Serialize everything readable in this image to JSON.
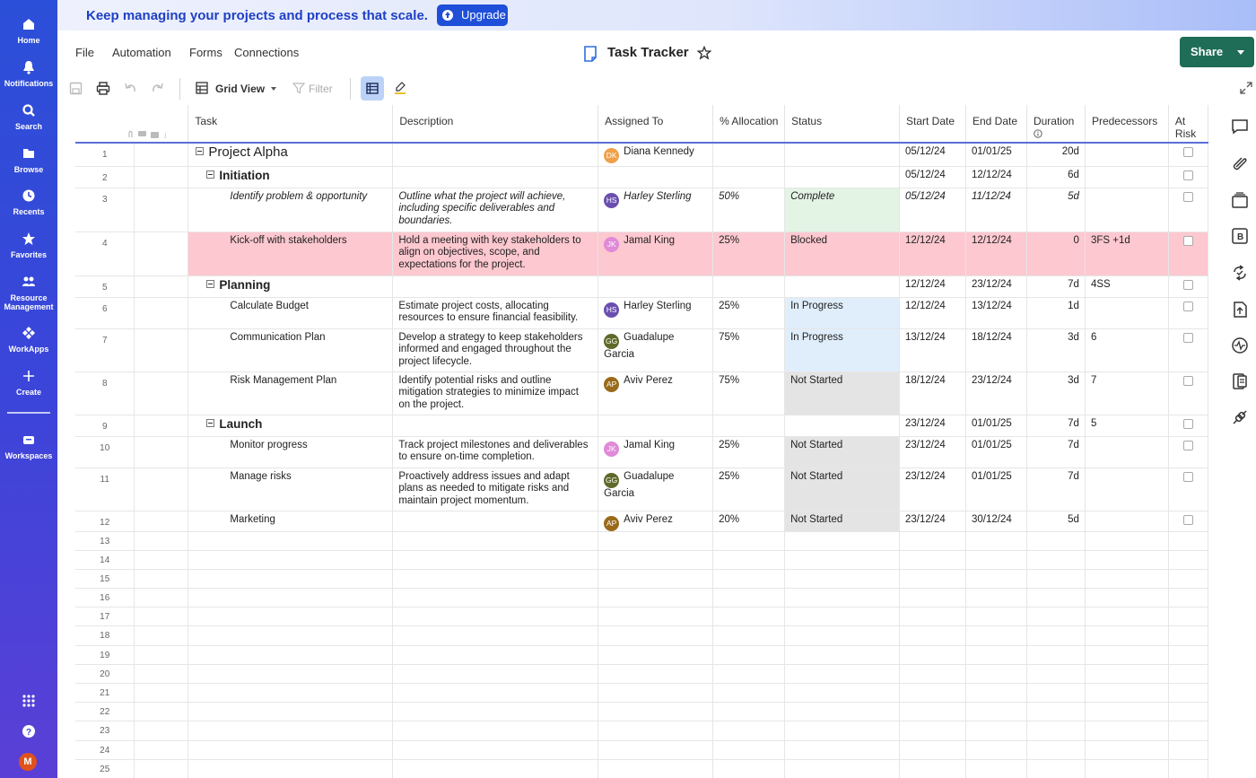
{
  "nav": {
    "items": [
      {
        "label": "Home",
        "icon": "home-icon"
      },
      {
        "label": "Notifications",
        "icon": "bell-icon"
      },
      {
        "label": "Search",
        "icon": "search-icon"
      },
      {
        "label": "Browse",
        "icon": "folder-icon"
      },
      {
        "label": "Recents",
        "icon": "clock-icon"
      },
      {
        "label": "Favorites",
        "icon": "star-icon"
      },
      {
        "label": "Resource Management",
        "icon": "people-icon"
      },
      {
        "label": "WorkApps",
        "icon": "workapps-icon"
      },
      {
        "label": "Create",
        "icon": "plus-icon"
      },
      {
        "label": "Workspaces",
        "icon": "briefcase-icon"
      }
    ],
    "avatar_initial": "M"
  },
  "banner": {
    "text": "Keep managing your projects and process that scale.",
    "upgrade_label": "Upgrade"
  },
  "menu": {
    "file": "File",
    "automation": "Automation",
    "forms": "Forms",
    "connections": "Connections"
  },
  "doc": {
    "title": "Task Tracker"
  },
  "share_label": "Share",
  "toolbar": {
    "view_label": "Grid View",
    "filter_label": "Filter"
  },
  "columns": [
    "Task",
    "Description",
    "Assigned To",
    "% Allocation",
    "Status",
    "Start Date",
    "End Date",
    "Duration",
    "Predecessors",
    "At Risk"
  ],
  "rows": [
    {
      "num": "1",
      "level": 0,
      "task": "Project Alpha",
      "desc": "",
      "assigned": "Diana Kennedy",
      "initials": "DK",
      "avatar_color": "#f0a04a",
      "alloc": "",
      "status": "",
      "start": "05/12/24",
      "end": "01/01/25",
      "duration": "20d",
      "pred": ""
    },
    {
      "num": "2",
      "level": 1,
      "task": "Initiation",
      "desc": "",
      "assigned": "",
      "initials": "",
      "avatar_color": "",
      "alloc": "",
      "status": "",
      "start": "05/12/24",
      "end": "12/12/24",
      "duration": "6d",
      "pred": ""
    },
    {
      "num": "3",
      "level": 2,
      "task": "Identify problem & opportunity",
      "desc": "Outline what the project will achieve, including specific deliverables and boundaries.",
      "assigned": "Harley Sterling",
      "initials": "HS",
      "avatar_color": "#6a4fb0",
      "alloc": "50%",
      "status": "Complete",
      "start": "05/12/24",
      "end": "11/12/24",
      "duration": "5d",
      "pred": "",
      "italic": true
    },
    {
      "num": "4",
      "level": 2,
      "task": "Kick-off with stakeholders",
      "desc": "Hold a meeting with key stakeholders to align on objectives, scope, and expectations for the project.",
      "assigned": "Jamal King",
      "initials": "JK",
      "avatar_color": "#e08ad8",
      "alloc": "25%",
      "status": "Blocked",
      "start": "12/12/24",
      "end": "12/12/24",
      "duration": "0",
      "pred": "3FS +1d",
      "blocked": true
    },
    {
      "num": "5",
      "level": 1,
      "task": "Planning",
      "desc": "",
      "assigned": "",
      "initials": "",
      "avatar_color": "",
      "alloc": "",
      "status": "",
      "start": "12/12/24",
      "end": "23/12/24",
      "duration": "7d",
      "pred": "4SS"
    },
    {
      "num": "6",
      "level": 2,
      "task": "Calculate Budget",
      "desc": "Estimate project costs, allocating resources to ensure financial feasibility.",
      "assigned": "Harley Sterling",
      "initials": "HS",
      "avatar_color": "#6a4fb0",
      "alloc": "25%",
      "status": "In Progress",
      "start": "12/12/24",
      "end": "13/12/24",
      "duration": "1d",
      "pred": ""
    },
    {
      "num": "7",
      "level": 2,
      "task": "Communication Plan",
      "desc": "Develop a strategy to keep stakeholders informed and engaged throughout the project lifecycle.",
      "assigned": "Guadalupe Garcia",
      "initials": "GG",
      "avatar_color": "#5f6a2a",
      "alloc": "75%",
      "status": "In Progress",
      "start": "13/12/24",
      "end": "18/12/24",
      "duration": "3d",
      "pred": "6"
    },
    {
      "num": "8",
      "level": 2,
      "task": "Risk Management Plan",
      "desc": "Identify potential risks and outline mitigation strategies to minimize impact on the project.",
      "assigned": "Aviv Perez",
      "initials": "AP",
      "avatar_color": "#9a6a1a",
      "alloc": "75%",
      "status": "Not Started",
      "start": "18/12/24",
      "end": "23/12/24",
      "duration": "3d",
      "pred": "7"
    },
    {
      "num": "9",
      "level": 1,
      "task": "Launch",
      "desc": "",
      "assigned": "",
      "initials": "",
      "avatar_color": "",
      "alloc": "",
      "status": "",
      "start": "23/12/24",
      "end": "01/01/25",
      "duration": "7d",
      "pred": "5"
    },
    {
      "num": "10",
      "level": 2,
      "task": "Monitor progress",
      "desc": "Track project milestones and deliverables to ensure on-time completion.",
      "assigned": "Jamal King",
      "initials": "JK",
      "avatar_color": "#e08ad8",
      "alloc": "25%",
      "status": "Not Started",
      "start": "23/12/24",
      "end": "01/01/25",
      "duration": "7d",
      "pred": ""
    },
    {
      "num": "11",
      "level": 2,
      "task": "Manage risks",
      "desc": "Proactively address issues and adapt plans as needed to mitigate risks and maintain project momentum.",
      "assigned": "Guadalupe Garcia",
      "initials": "GG",
      "avatar_color": "#5f6a2a",
      "alloc": "25%",
      "status": "Not Started",
      "start": "23/12/24",
      "end": "01/01/25",
      "duration": "7d",
      "pred": ""
    },
    {
      "num": "12",
      "level": 2,
      "task": "Marketing",
      "desc": "",
      "assigned": "Aviv Perez",
      "initials": "AP",
      "avatar_color": "#9a6a1a",
      "alloc": "20%",
      "status": "Not Started",
      "start": "23/12/24",
      "end": "30/12/24",
      "duration": "5d",
      "pred": ""
    }
  ],
  "empty_rows": [
    "13",
    "14",
    "15",
    "16",
    "17",
    "18",
    "19",
    "20",
    "21",
    "22",
    "23",
    "24",
    "25"
  ],
  "right_rail_icons": [
    "comment-icon",
    "attachment-icon",
    "proofs-icon",
    "bridge-icon",
    "update-requests-icon",
    "publish-icon",
    "activity-icon",
    "summary-icon",
    "connections-icon"
  ]
}
